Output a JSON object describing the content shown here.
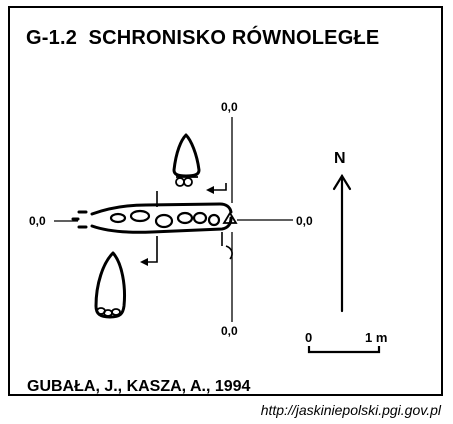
{
  "title": {
    "code": "G-1.2",
    "name": "SCHRONISKO RÓWNOLEGŁE"
  },
  "credit": "GUBAŁA, J., KASZA, A., 1994",
  "url": "http://jaskiniepolski.pgi.gov.pl",
  "profile_labels": {
    "top": "0,0",
    "left": "0,0",
    "right": "0,0",
    "bottom": "0,0"
  },
  "north": "N",
  "scale": {
    "start": "0",
    "end": "1 m"
  },
  "colors": {
    "ink": "#000000",
    "paper": "#ffffff"
  }
}
